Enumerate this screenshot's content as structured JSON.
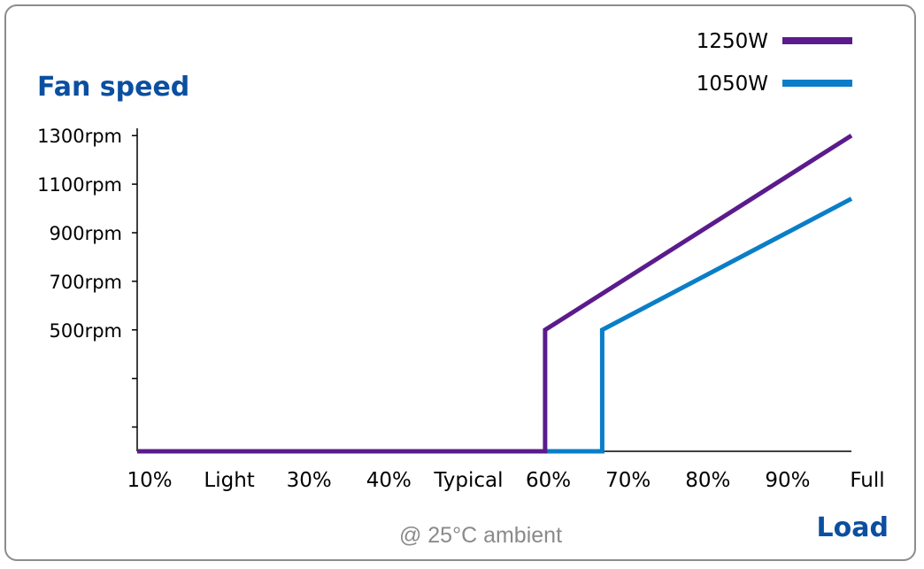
{
  "chart_data": {
    "type": "line",
    "ylabel": "Fan speed",
    "xlabel": "Load",
    "annotation": "@ 25°C ambient",
    "x_ticks": [
      "10%",
      "Light",
      "30%",
      "40%",
      "Typical",
      "60%",
      "70%",
      "80%",
      "90%",
      "Full"
    ],
    "x_range": [
      10,
      100
    ],
    "y_ticks": [
      {
        "value": 500,
        "label": "500rpm"
      },
      {
        "value": 700,
        "label": "700rpm"
      },
      {
        "value": 900,
        "label": "900rpm"
      },
      {
        "value": 1100,
        "label": "1100rpm"
      },
      {
        "value": 1300,
        "label": "1300rpm"
      }
    ],
    "y_minor_ticks": [
      100,
      300
    ],
    "y_range": [
      0,
      1330
    ],
    "grid": false,
    "legend_position": "top-right",
    "series": [
      {
        "name": "1250W",
        "color": "#5b1b8c",
        "points": [
          [
            10,
            0
          ],
          [
            61.4,
            0
          ],
          [
            61.4,
            500
          ],
          [
            100,
            1300
          ]
        ]
      },
      {
        "name": "1050W",
        "color": "#0a7ec8",
        "points": [
          [
            10,
            0
          ],
          [
            68.6,
            0
          ],
          [
            68.6,
            500
          ],
          [
            100,
            1040
          ]
        ]
      }
    ]
  },
  "style": {
    "title_color": "#0b4fa0",
    "axis_color": "#000000",
    "annotation_color": "#8a8a8a"
  }
}
